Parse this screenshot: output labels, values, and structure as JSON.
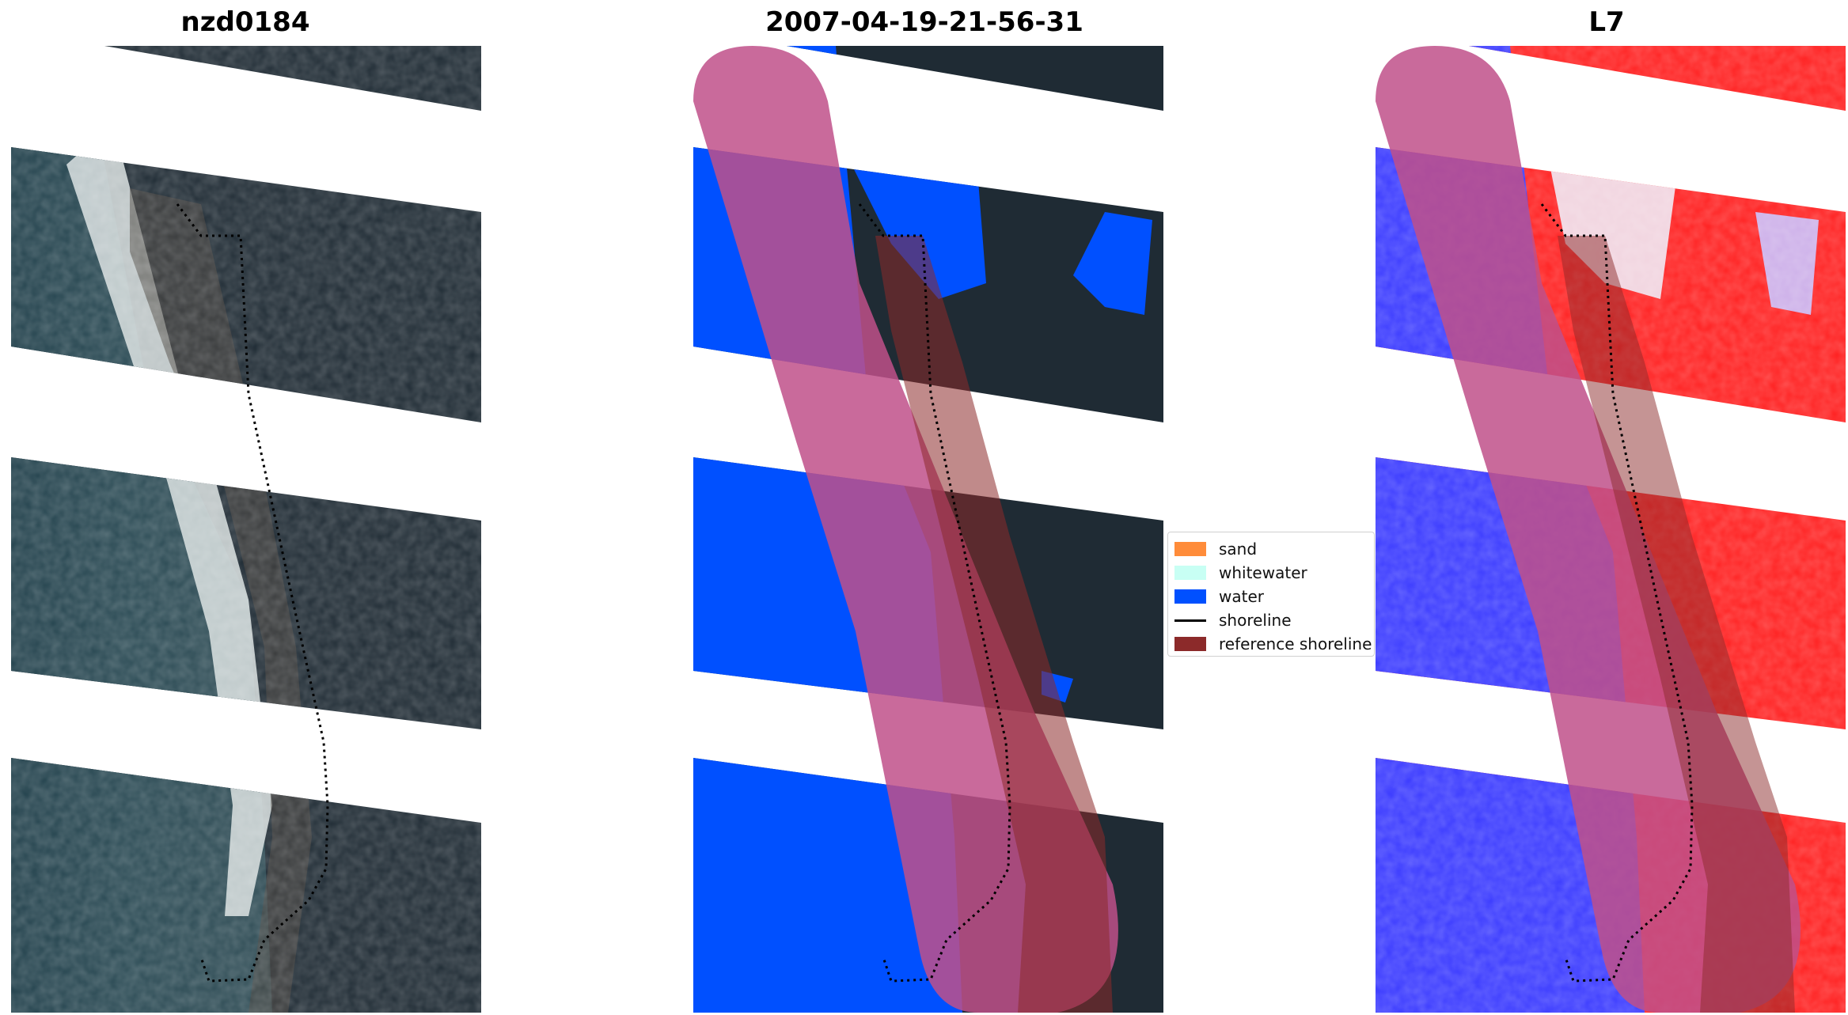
{
  "titles": {
    "left": "nzd0184",
    "center": "2007-04-19-21-56-31",
    "right": "L7"
  },
  "legend": {
    "items": [
      {
        "label": "sand",
        "type": "patch",
        "color": "#ff8c3a"
      },
      {
        "label": "whitewater",
        "type": "patch",
        "color": "#c8fff4"
      },
      {
        "label": "water",
        "type": "patch",
        "color": "#0050ff"
      },
      {
        "label": "shoreline",
        "type": "line",
        "color": "#000000"
      },
      {
        "label": "reference shoreline",
        "type": "patch",
        "color": "#8c2a2a"
      }
    ]
  },
  "colors": {
    "land": "#1e2a33",
    "sea": "#24424e",
    "whitewater": "#dfe6e6",
    "water_class": "#0050ff",
    "buffer": "#c0508a",
    "reference": "#8c2a2a",
    "index_water": "#2a2aff",
    "index_land": "#ff1a1a"
  }
}
